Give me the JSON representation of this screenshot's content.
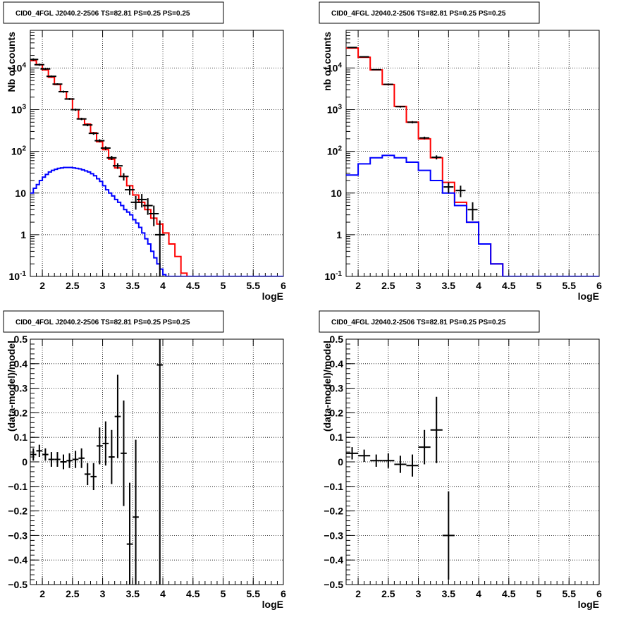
{
  "chart_data": [
    {
      "panel": "top-left",
      "type": "line",
      "title": "CID0_4FGL J2040.2-2506 TS=82.81 PS=0.25 PS=0.25",
      "xlabel": "logE",
      "ylabel": "Nb of counts",
      "xlim": [
        1.8,
        6.0
      ],
      "ylim": [
        0.1,
        80000
      ],
      "yscale": "log",
      "grid": true,
      "xticks": [
        "2",
        "2.5",
        "3",
        "3.5",
        "4",
        "4.5",
        "5",
        "5.5",
        "6"
      ],
      "yticks": [
        "10-1",
        "1",
        "10",
        "102",
        "103",
        "104"
      ],
      "series": [
        {
          "color": "#ff0000",
          "style": "step",
          "bin_width": 0.1,
          "x": [
            1.8,
            1.9,
            2.0,
            2.1,
            2.2,
            2.3,
            2.4,
            2.5,
            2.6,
            2.7,
            2.8,
            2.9,
            3.0,
            3.1,
            3.2,
            3.3,
            3.4,
            3.5,
            3.6,
            3.7,
            3.8,
            3.9,
            4.0,
            4.1,
            4.2,
            4.3,
            4.4,
            4.5,
            4.6,
            4.7,
            4.8,
            4.9,
            5.0,
            5.1,
            5.2,
            5.3,
            5.4,
            5.5,
            5.6,
            5.7,
            5.8,
            5.9
          ],
          "values": [
            15000,
            12000,
            9000,
            6000,
            4000,
            2700,
            1800,
            1000,
            600,
            450,
            280,
            170,
            110,
            65,
            40,
            25,
            15,
            9,
            6,
            4,
            2.5,
            1.8,
            1.1,
            0.6,
            0.3,
            0.12,
            0.1,
            0.1,
            0.1,
            0.1,
            0.1,
            0.1,
            0.1,
            0.1,
            0.1,
            0.1,
            0.1,
            0.1,
            0.1,
            0.1,
            0.1,
            0.1
          ]
        },
        {
          "color": "#0000ff",
          "style": "step",
          "bin_width": 0.05,
          "x": [
            1.8,
            1.85,
            1.9,
            1.95,
            2.0,
            2.05,
            2.1,
            2.15,
            2.2,
            2.25,
            2.3,
            2.35,
            2.4,
            2.45,
            2.5,
            2.55,
            2.6,
            2.65,
            2.7,
            2.75,
            2.8,
            2.85,
            2.9,
            2.95,
            3.0,
            3.05,
            3.1,
            3.15,
            3.2,
            3.25,
            3.3,
            3.35,
            3.4,
            3.45,
            3.5,
            3.55,
            3.6,
            3.65,
            3.7,
            3.75,
            3.8,
            3.85,
            3.9,
            3.95,
            4.0,
            4.05,
            4.1,
            4.15,
            4.2,
            4.25,
            4.3,
            4.35,
            4.4,
            4.45,
            4.5,
            4.55,
            4.6,
            4.65,
            4.7,
            4.75,
            4.8,
            4.85,
            4.9,
            4.95,
            5.0,
            5.05,
            5.1,
            5.15,
            5.2,
            5.25,
            5.3,
            5.35,
            5.4,
            5.45,
            5.5,
            5.55,
            5.6,
            5.65,
            5.7,
            5.75,
            5.8,
            5.85,
            5.9,
            5.95
          ],
          "values": [
            10,
            13,
            16,
            20,
            24,
            28,
            32,
            35,
            37,
            39,
            40,
            41,
            41,
            41,
            40,
            39,
            38,
            36,
            34,
            32,
            29,
            26,
            22,
            19,
            15,
            12,
            10,
            8.5,
            7,
            6,
            5,
            4,
            3.5,
            3,
            2.3,
            1.9,
            1.5,
            1.1,
            0.8,
            0.6,
            0.4,
            0.28,
            0.2,
            0.15,
            0.11,
            0.1,
            0.1,
            0.1,
            0.1,
            0.1,
            0.1,
            0.1,
            0.1,
            0.1,
            0.1,
            0.1,
            0.1,
            0.1,
            0.1,
            0.1,
            0.1,
            0.1,
            0.1,
            0.1,
            0.1,
            0.1,
            0.1,
            0.1,
            0.1,
            0.1,
            0.1,
            0.1,
            0.1,
            0.1,
            0.1,
            0.1,
            0.1,
            0.1,
            0.1,
            0.1,
            0.1,
            0.1,
            0.1,
            0.1
          ]
        },
        {
          "color": "#000000",
          "style": "points",
          "points": [
            {
              "x": 1.85,
              "y": 16000,
              "ylo": 15000,
              "yhi": 17000
            },
            {
              "x": 1.95,
              "y": 12000,
              "ylo": 11300,
              "yhi": 12700
            },
            {
              "x": 2.05,
              "y": 9500,
              "ylo": 9000,
              "yhi": 10000
            },
            {
              "x": 2.15,
              "y": 6300,
              "ylo": 6000,
              "yhi": 6600
            },
            {
              "x": 2.25,
              "y": 4100,
              "ylo": 3900,
              "yhi": 4300
            },
            {
              "x": 2.35,
              "y": 2700,
              "ylo": 2550,
              "yhi": 2850
            },
            {
              "x": 2.45,
              "y": 1800,
              "ylo": 1700,
              "yhi": 1900
            },
            {
              "x": 2.55,
              "y": 1000,
              "ylo": 940,
              "yhi": 1060
            },
            {
              "x": 2.65,
              "y": 600,
              "ylo": 560,
              "yhi": 640
            },
            {
              "x": 2.75,
              "y": 430,
              "ylo": 400,
              "yhi": 460
            },
            {
              "x": 2.85,
              "y": 270,
              "ylo": 250,
              "yhi": 290
            },
            {
              "x": 2.95,
              "y": 180,
              "ylo": 165,
              "yhi": 195
            },
            {
              "x": 3.05,
              "y": 120,
              "ylo": 108,
              "yhi": 132
            },
            {
              "x": 3.15,
              "y": 70,
              "ylo": 62,
              "yhi": 78
            },
            {
              "x": 3.25,
              "y": 45,
              "ylo": 38,
              "yhi": 52
            },
            {
              "x": 3.35,
              "y": 25,
              "ylo": 20,
              "yhi": 30
            },
            {
              "x": 3.45,
              "y": 12,
              "ylo": 9,
              "yhi": 15
            },
            {
              "x": 3.55,
              "y": 6,
              "ylo": 4,
              "yhi": 8.5
            },
            {
              "x": 3.65,
              "y": 7,
              "ylo": 4.5,
              "yhi": 9.5
            },
            {
              "x": 3.75,
              "y": 5,
              "ylo": 3,
              "yhi": 7.5
            },
            {
              "x": 3.85,
              "y": 3.2,
              "ylo": 1.6,
              "yhi": 5
            },
            {
              "x": 3.95,
              "y": 1,
              "ylo": 0.1,
              "yhi": 2.2
            }
          ]
        }
      ]
    },
    {
      "panel": "top-right",
      "type": "line",
      "title": "CID0_4FGL J2040.2-2506 TS=82.81 PS=0.25 PS=0.25",
      "xlabel": "logE",
      "ylabel": "nb of counts",
      "xlim": [
        1.8,
        6.0
      ],
      "ylim": [
        0.1,
        80000
      ],
      "yscale": "log",
      "grid": true,
      "xticks": [
        "2",
        "2.5",
        "3",
        "3.5",
        "4",
        "4.5",
        "5",
        "5.5",
        "6"
      ],
      "yticks": [
        "10-1",
        "1",
        "10",
        "102",
        "103",
        "104"
      ],
      "series": [
        {
          "color": "#ff0000",
          "style": "step",
          "bin_width": 0.2,
          "x": [
            1.8,
            2.0,
            2.2,
            2.4,
            2.6,
            2.8,
            3.0,
            3.2,
            3.4,
            3.6,
            3.8,
            4.0,
            4.2,
            4.4,
            4.6,
            4.8,
            5.0,
            5.2,
            5.4,
            5.6,
            5.8
          ],
          "values": [
            30000,
            18000,
            9000,
            4000,
            1200,
            500,
            200,
            70,
            18,
            6,
            2,
            0.6,
            0.2,
            0.1,
            0.1,
            0.1,
            0.1,
            0.1,
            0.1,
            0.1,
            0.1
          ]
        },
        {
          "color": "#0000ff",
          "style": "step",
          "bin_width": 0.2,
          "x": [
            1.8,
            2.0,
            2.2,
            2.4,
            2.6,
            2.8,
            3.0,
            3.2,
            3.4,
            3.6,
            3.8,
            4.0,
            4.2,
            4.4,
            4.6,
            4.8,
            5.0,
            5.2,
            5.4,
            5.6,
            5.8
          ],
          "values": [
            27,
            50,
            70,
            80,
            70,
            55,
            35,
            20,
            10,
            5,
            2,
            0.6,
            0.2,
            0.1,
            0.1,
            0.1,
            0.1,
            0.1,
            0.1,
            0.1,
            0.1
          ]
        },
        {
          "color": "#000000",
          "style": "points",
          "points": [
            {
              "x": 1.9,
              "y": 31000,
              "ylo": 30000,
              "yhi": 32000
            },
            {
              "x": 2.1,
              "y": 18500,
              "ylo": 18000,
              "yhi": 19000
            },
            {
              "x": 2.3,
              "y": 9100,
              "ylo": 8900,
              "yhi": 9300
            },
            {
              "x": 2.5,
              "y": 4050,
              "ylo": 3900,
              "yhi": 4200
            },
            {
              "x": 2.7,
              "y": 1180,
              "ylo": 1120,
              "yhi": 1240
            },
            {
              "x": 2.9,
              "y": 500,
              "ylo": 470,
              "yhi": 530
            },
            {
              "x": 3.1,
              "y": 210,
              "ylo": 195,
              "yhi": 225
            },
            {
              "x": 3.3,
              "y": 72,
              "ylo": 64,
              "yhi": 80
            },
            {
              "x": 3.5,
              "y": 14,
              "ylo": 10,
              "yhi": 18
            },
            {
              "x": 3.7,
              "y": 11.5,
              "ylo": 8,
              "yhi": 15
            },
            {
              "x": 3.9,
              "y": 4,
              "ylo": 2.2,
              "yhi": 6
            }
          ]
        }
      ]
    },
    {
      "panel": "bottom-left",
      "type": "scatter",
      "title": "CID0_4FGL J2040.2-2506 TS=82.81 PS=0.25 PS=0.25",
      "xlabel": "logE",
      "ylabel": "(data-model)/model",
      "xlim": [
        1.8,
        6.0
      ],
      "ylim": [
        -0.5,
        0.5
      ],
      "yscale": "linear",
      "grid": true,
      "xticks": [
        "2",
        "2.5",
        "3",
        "3.5",
        "4",
        "4.5",
        "5",
        "5.5",
        "6"
      ],
      "yticks": [
        "-0.5",
        "-0.4",
        "-0.3",
        "-0.2",
        "-0.1",
        "0",
        "0.1",
        "0.2",
        "0.3",
        "0.4",
        "0.5"
      ],
      "series": [
        {
          "color": "#000000",
          "style": "errorbars",
          "xerr": 0.05,
          "points": [
            {
              "x": 1.85,
              "y": 0.03,
              "err": 0.025
            },
            {
              "x": 1.95,
              "y": 0.045,
              "err": 0.025
            },
            {
              "x": 2.05,
              "y": 0.03,
              "err": 0.025
            },
            {
              "x": 2.15,
              "y": 0.01,
              "err": 0.03
            },
            {
              "x": 2.25,
              "y": 0.01,
              "err": 0.03
            },
            {
              "x": 2.35,
              "y": 0.0,
              "err": 0.03
            },
            {
              "x": 2.45,
              "y": 0.005,
              "err": 0.03
            },
            {
              "x": 2.55,
              "y": 0.01,
              "err": 0.035
            },
            {
              "x": 2.65,
              "y": 0.015,
              "err": 0.04
            },
            {
              "x": 2.75,
              "y": -0.05,
              "err": 0.045
            },
            {
              "x": 2.85,
              "y": -0.06,
              "err": 0.055
            },
            {
              "x": 2.95,
              "y": 0.065,
              "err": 0.075
            },
            {
              "x": 3.05,
              "y": 0.075,
              "err": 0.09
            },
            {
              "x": 3.15,
              "y": 0.02,
              "err": 0.11
            },
            {
              "x": 3.25,
              "y": 0.185,
              "err": 0.17
            },
            {
              "x": 3.35,
              "y": 0.035,
              "err": 0.215
            },
            {
              "x": 3.45,
              "y": -0.335,
              "err": 0.25
            },
            {
              "x": 3.55,
              "y": -0.225,
              "err": 0.315
            },
            {
              "x": 3.95,
              "y": 0.395,
              "err": 0.9
            }
          ]
        }
      ]
    },
    {
      "panel": "bottom-right",
      "type": "scatter",
      "title": "CID0_4FGL J2040.2-2506 TS=82.81 PS=0.25 PS=0.25",
      "xlabel": "logE",
      "ylabel": "(data-model)/model",
      "xlim": [
        1.8,
        6.0
      ],
      "ylim": [
        -0.5,
        0.5
      ],
      "yscale": "linear",
      "grid": true,
      "xticks": [
        "2",
        "2.5",
        "3",
        "3.5",
        "4",
        "4.5",
        "5",
        "5.5",
        "6"
      ],
      "yticks": [
        "-0.5",
        "-0.4",
        "-0.3",
        "-0.2",
        "-0.1",
        "0",
        "0.1",
        "0.2",
        "0.3",
        "0.4",
        "0.5"
      ],
      "series": [
        {
          "color": "#000000",
          "style": "errorbars",
          "xerr": 0.1,
          "points": [
            {
              "x": 1.9,
              "y": 0.035,
              "err": 0.025
            },
            {
              "x": 2.1,
              "y": 0.025,
              "err": 0.025
            },
            {
              "x": 2.3,
              "y": 0.005,
              "err": 0.025
            },
            {
              "x": 2.5,
              "y": 0.005,
              "err": 0.03
            },
            {
              "x": 2.7,
              "y": -0.01,
              "err": 0.035
            },
            {
              "x": 2.9,
              "y": -0.015,
              "err": 0.045
            },
            {
              "x": 3.1,
              "y": 0.06,
              "err": 0.07
            },
            {
              "x": 3.3,
              "y": 0.13,
              "err": 0.135
            },
            {
              "x": 3.5,
              "y": -0.3,
              "err": 0.18
            }
          ]
        }
      ]
    }
  ]
}
